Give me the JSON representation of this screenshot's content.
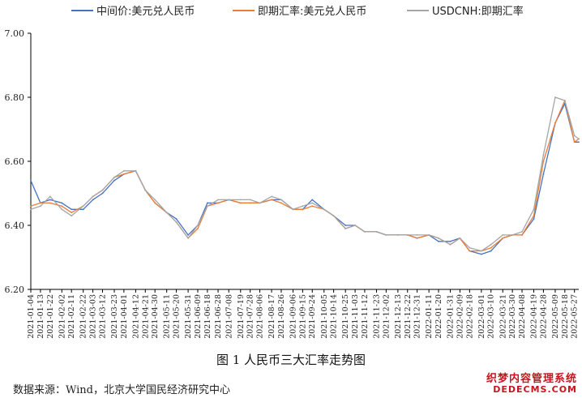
{
  "chart_data": {
    "type": "line",
    "title": "",
    "xlabel": "",
    "ylabel": "",
    "ylim": [
      6.2,
      7.0
    ],
    "yticks": [
      "6.20",
      "6.40",
      "6.60",
      "6.80",
      "7.00"
    ],
    "grid": false,
    "legend_position": "top",
    "x_tick_labels": [
      "2021-01-04",
      "2021-01-13",
      "2021-01-22",
      "2021-02-02",
      "2021-02-11",
      "2021-02-22",
      "2021-03-03",
      "2021-03-12",
      "2021-03-23",
      "2021-04-01",
      "2021-04-12",
      "2021-04-21",
      "2021-04-30",
      "2021-05-11",
      "2021-05-20",
      "2021-05-31",
      "2021-06-09",
      "2021-06-18",
      "2021-06-28",
      "2021-07-08",
      "2021-07-19",
      "2021-07-28",
      "2021-08-06",
      "2021-08-17",
      "2021-08-26",
      "2021-09-06",
      "2021-09-15",
      "2021-09-24",
      "2021-10-05",
      "2021-10-14",
      "2021-10-25",
      "2021-11-03",
      "2021-11-12",
      "2021-11-23",
      "2021-12-02",
      "2021-12-13",
      "2021-12-22",
      "2021-12-31",
      "2022-01-11",
      "2022-01-20",
      "2022-01-31",
      "2022-02-09",
      "2022-02-18",
      "2022-03-01",
      "2022-03-10",
      "2022-03-21",
      "2022-03-30",
      "2022-04-08",
      "2022-04-19",
      "2022-04-28",
      "2022-05-09",
      "2022-05-18",
      "2022-05-27"
    ],
    "x": [
      "2021-01-04",
      "2021-01-13",
      "2021-01-22",
      "2021-02-02",
      "2021-02-11",
      "2021-02-22",
      "2021-03-03",
      "2021-03-12",
      "2021-03-23",
      "2021-04-01",
      "2021-04-12",
      "2021-04-21",
      "2021-04-30",
      "2021-05-11",
      "2021-05-20",
      "2021-05-31",
      "2021-06-09",
      "2021-06-18",
      "2021-06-28",
      "2021-07-08",
      "2021-07-19",
      "2021-07-28",
      "2021-08-06",
      "2021-08-17",
      "2021-08-26",
      "2021-09-06",
      "2021-09-15",
      "2021-09-24",
      "2021-10-05",
      "2021-10-14",
      "2021-10-25",
      "2021-11-03",
      "2021-11-12",
      "2021-11-23",
      "2021-12-02",
      "2021-12-13",
      "2021-12-22",
      "2021-12-31",
      "2022-01-11",
      "2022-01-20",
      "2022-01-31",
      "2022-02-09",
      "2022-02-18",
      "2022-03-01",
      "2022-03-10",
      "2022-03-21",
      "2022-03-30",
      "2022-04-08",
      "2022-04-19",
      "2022-04-28",
      "2022-05-09",
      "2022-05-18",
      "2022-05-27",
      "2022-05-31"
    ],
    "series": [
      {
        "name": "中间价:美元兑人民币",
        "color": "#4472c4",
        "values": [
          6.54,
          6.47,
          6.48,
          6.47,
          6.45,
          6.45,
          6.48,
          6.5,
          6.54,
          6.56,
          6.57,
          6.51,
          6.47,
          6.44,
          6.42,
          6.37,
          6.4,
          6.47,
          6.47,
          6.48,
          6.47,
          6.47,
          6.47,
          6.48,
          6.48,
          6.45,
          6.45,
          6.48,
          6.45,
          6.43,
          6.4,
          6.4,
          6.38,
          6.38,
          6.37,
          6.37,
          6.37,
          6.36,
          6.37,
          6.35,
          6.35,
          6.36,
          6.32,
          6.31,
          6.32,
          6.36,
          6.37,
          6.37,
          6.42,
          6.56,
          6.72,
          6.78,
          6.66,
          6.66
        ]
      },
      {
        "name": "即期汇率:美元兑人民币",
        "color": "#ed7d31",
        "values": [
          6.46,
          6.47,
          6.47,
          6.46,
          6.44,
          6.46,
          6.49,
          6.51,
          6.55,
          6.56,
          6.57,
          6.51,
          6.47,
          6.44,
          6.41,
          6.36,
          6.39,
          6.46,
          6.47,
          6.48,
          6.47,
          6.47,
          6.47,
          6.48,
          6.47,
          6.45,
          6.45,
          6.46,
          6.45,
          6.43,
          6.39,
          6.4,
          6.38,
          6.38,
          6.37,
          6.37,
          6.37,
          6.36,
          6.37,
          6.36,
          6.34,
          6.36,
          6.32,
          6.32,
          6.33,
          6.36,
          6.37,
          6.37,
          6.43,
          6.6,
          6.72,
          6.79,
          6.66,
          6.67
        ]
      },
      {
        "name": "USDCNH:即期汇率",
        "color": "#a5a5a5",
        "values": [
          6.45,
          6.46,
          6.49,
          6.45,
          6.43,
          6.46,
          6.49,
          6.51,
          6.55,
          6.57,
          6.57,
          6.51,
          6.48,
          6.44,
          6.41,
          6.36,
          6.4,
          6.46,
          6.48,
          6.48,
          6.48,
          6.48,
          6.47,
          6.49,
          6.48,
          6.45,
          6.46,
          6.47,
          6.45,
          6.43,
          6.39,
          6.4,
          6.38,
          6.38,
          6.37,
          6.37,
          6.37,
          6.37,
          6.37,
          6.36,
          6.34,
          6.36,
          6.33,
          6.32,
          6.34,
          6.37,
          6.37,
          6.38,
          6.45,
          6.62,
          6.8,
          6.79,
          6.68,
          6.67
        ]
      }
    ]
  },
  "caption": "图 1  人民币三大汇率走势图",
  "source": "数据来源：Wind，北京大学国民经济研究中心",
  "watermark": {
    "line1": "织梦内容管理系统",
    "line2": "DEDECMS.COM"
  }
}
